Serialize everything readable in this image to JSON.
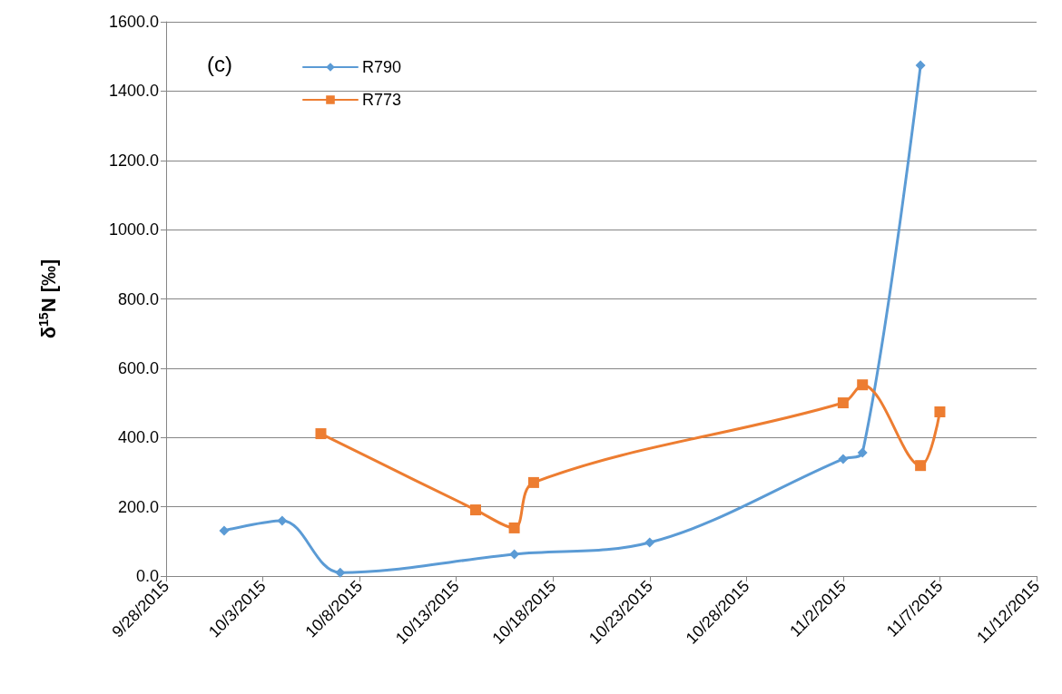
{
  "chart_data": {
    "type": "line",
    "ylabel": "δ$^{15}$N [‰]",
    "annotations": [
      "(c)"
    ],
    "xlim": [
      "2015-09-28",
      "2015-11-12"
    ],
    "xticks": [
      {
        "value": "2015-09-28",
        "label": "9/28/2015"
      },
      {
        "value": "2015-10-03",
        "label": "10/3/2015"
      },
      {
        "value": "2015-10-08",
        "label": "10/8/2015"
      },
      {
        "value": "2015-10-13",
        "label": "10/13/2015"
      },
      {
        "value": "2015-10-18",
        "label": "10/18/2015"
      },
      {
        "value": "2015-10-23",
        "label": "10/23/2015"
      },
      {
        "value": "2015-10-28",
        "label": "10/28/2015"
      },
      {
        "value": "2015-11-02",
        "label": "11/2/2015"
      },
      {
        "value": "2015-11-07",
        "label": "11/7/2015"
      },
      {
        "value": "2015-11-12",
        "label": "11/12/2015"
      }
    ],
    "ylim": [
      0,
      1600
    ],
    "yticks": [
      {
        "value": 0,
        "label": "0.0"
      },
      {
        "value": 200,
        "label": "200.0"
      },
      {
        "value": 400,
        "label": "400.0"
      },
      {
        "value": 600,
        "label": "600.0"
      },
      {
        "value": 800,
        "label": "800.0"
      },
      {
        "value": 1000,
        "label": "1000.0"
      },
      {
        "value": 1200,
        "label": "1200.0"
      },
      {
        "value": 1400,
        "label": "1400.0"
      },
      {
        "value": 1600,
        "label": "1600.0"
      }
    ],
    "series": [
      {
        "name": "R790",
        "color": "#5b9bd5",
        "marker": "diamond",
        "x": [
          "2015-10-01",
          "2015-10-04",
          "2015-10-07",
          "2015-10-16",
          "2015-10-23",
          "2015-11-02",
          "2015-11-03",
          "2015-11-06"
        ],
        "values": [
          131,
          160,
          10,
          63,
          97,
          338,
          356,
          1474
        ]
      },
      {
        "name": "R773",
        "color": "#ed7d31",
        "marker": "square",
        "x": [
          "2015-10-06",
          "2015-10-14",
          "2015-10-16",
          "2015-10-17",
          "2015-11-02",
          "2015-11-03",
          "2015-11-06",
          "2015-11-07"
        ],
        "values": [
          411,
          191,
          139,
          270,
          500,
          552,
          319,
          474
        ]
      }
    ],
    "grid": "y",
    "legend": "top left",
    "line_style": "solid"
  }
}
